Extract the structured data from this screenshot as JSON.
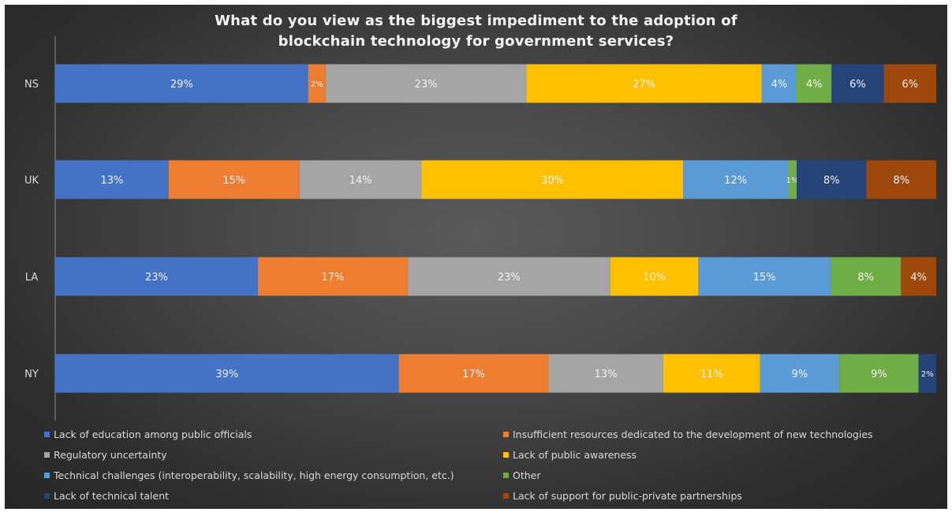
{
  "chart_data": {
    "type": "bar",
    "orientation": "horizontal",
    "stacked": true,
    "title_lines": [
      "What do you view as the biggest impediment to the adoption of",
      "blockchain technology for government services?"
    ],
    "categories": [
      "NS",
      "UK",
      "LA",
      "NY"
    ],
    "series": [
      {
        "name": "Lack of education among public officials",
        "color": "#4472c4",
        "values": [
          29,
          13,
          23,
          39
        ],
        "labels": [
          "29%",
          "13%",
          "23%",
          "39%"
        ]
      },
      {
        "name": "Insufficient resources dedicated to the development of new technologies",
        "color": "#ed7d31",
        "values": [
          2,
          15,
          17,
          17
        ],
        "labels": [
          "2%",
          "15%",
          "17%",
          "17%"
        ]
      },
      {
        "name": "Regulatory uncertainty",
        "color": "#a5a5a5",
        "values": [
          23,
          14,
          23,
          13
        ],
        "labels": [
          "23%",
          "14%",
          "23%",
          "13%"
        ]
      },
      {
        "name": "Lack of public awareness",
        "color": "#ffc000",
        "values": [
          27,
          30,
          10,
          11
        ],
        "labels": [
          "27%",
          "30%",
          "10%",
          "11%"
        ]
      },
      {
        "name": "Technical challenges (interoperability, scalability, high energy consumption, etc.)",
        "color": "#5b9bd5",
        "values": [
          4,
          12,
          15,
          9
        ],
        "labels": [
          "4%",
          "12%",
          "15%",
          "9%"
        ]
      },
      {
        "name": "Other",
        "color": "#70ad47",
        "values": [
          4,
          1,
          8,
          9
        ],
        "labels": [
          "4%",
          "1%",
          "8%",
          "9%"
        ]
      },
      {
        "name": "Lack of technical talent",
        "color": "#264478",
        "values": [
          6,
          8,
          0,
          2
        ],
        "labels": [
          "6%",
          "8%",
          "",
          "2%"
        ]
      },
      {
        "name": "Lack of support for public-private partnerships",
        "color": "#9e480e",
        "values": [
          6,
          8,
          4,
          0
        ],
        "labels": [
          "6%",
          "8%",
          "4%",
          ""
        ]
      }
    ],
    "legend_position": "bottom",
    "grid": false
  }
}
